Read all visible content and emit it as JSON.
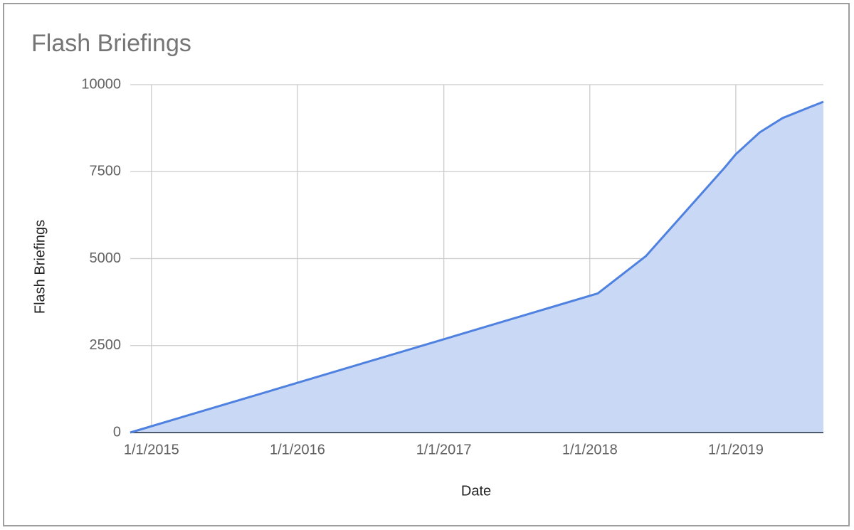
{
  "chart_data": {
    "type": "area",
    "title": "Flash Briefings",
    "x_label": "Date",
    "y_label": "Flash Briefings",
    "x": [
      "2014-11-09",
      "2018-01-21",
      "2018-05-21",
      "2018-12-03",
      "2019-01-01",
      "2019-03-02",
      "2019-04-28",
      "2019-08-08"
    ],
    "values": [
      0,
      4000,
      5070,
      7600,
      8000,
      8630,
      9040,
      9510
    ],
    "color": "#4f81e0",
    "area_color": "#c9d9f5",
    "xlim": [
      "2014-11-09",
      "2019-08-08"
    ],
    "xticks": [
      {
        "value": "2015-01-01",
        "label": "1/1/2015"
      },
      {
        "value": "2016-01-01",
        "label": "1/1/2016"
      },
      {
        "value": "2017-01-01",
        "label": "1/1/2017"
      },
      {
        "value": "2018-01-01",
        "label": "1/1/2018"
      },
      {
        "value": "2019-01-01",
        "label": "1/1/2019"
      }
    ],
    "ylim": [
      0,
      10000
    ],
    "yticks": [
      0,
      2500,
      5000,
      7500,
      10000
    ],
    "grid": true
  }
}
